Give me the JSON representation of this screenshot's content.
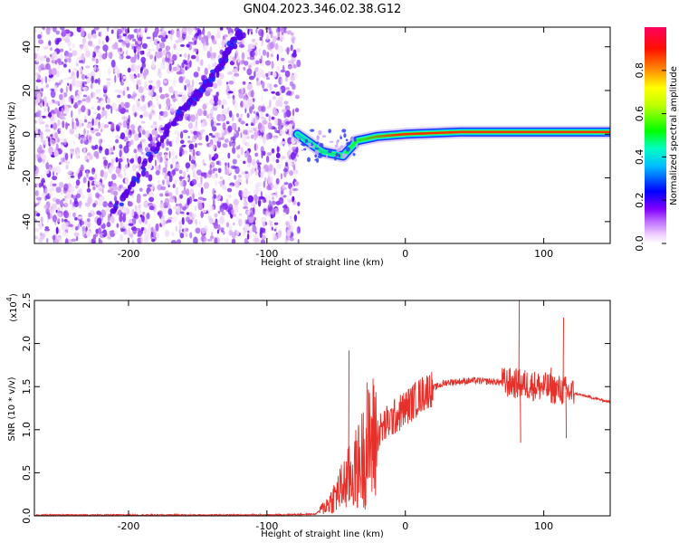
{
  "title": "GN04.2023.346.02.38.G12",
  "chart_data": [
    {
      "type": "heatmap",
      "xlabel": "Height of straight line (km)",
      "ylabel": "Frequency (Hz)",
      "xlim": [
        -268,
        148
      ],
      "ylim": [
        -50,
        49
      ],
      "xticks": [
        -200,
        -100,
        0,
        100
      ],
      "yticks": [
        -40,
        -20,
        0,
        20,
        40
      ],
      "colorbar": {
        "label": "Normalized spectral amplitude",
        "range": [
          0,
          1
        ],
        "ticks": [
          "0.0",
          "0.2",
          "0.4",
          "0.6",
          "0.8"
        ],
        "colors": [
          "#ffffff",
          "#e8b4f8",
          "#9a00ff",
          "#0000ff",
          "#00ffff",
          "#00ff00",
          "#ffff00",
          "#ff8000",
          "#ff0000",
          "#ff0066"
        ]
      },
      "noise_region": {
        "x_start": -268,
        "x_end": -77
      },
      "diagonal_streak": [
        {
          "x": -210,
          "y": -35
        },
        {
          "x": -165,
          "y": 8
        },
        {
          "x": -140,
          "y": 25
        },
        {
          "x": -118,
          "y": 48
        }
      ],
      "signal_ridge": [
        {
          "x": -78,
          "y": 0,
          "amp": 0.35
        },
        {
          "x": -60,
          "y": -8,
          "amp": 0.4
        },
        {
          "x": -45,
          "y": -10,
          "amp": 0.45
        },
        {
          "x": -35,
          "y": -3,
          "amp": 0.6
        },
        {
          "x": -20,
          "y": -1,
          "amp": 0.75
        },
        {
          "x": 0,
          "y": 0,
          "amp": 0.85
        },
        {
          "x": 40,
          "y": 1,
          "amp": 0.9
        },
        {
          "x": 80,
          "y": 1,
          "amp": 0.9
        },
        {
          "x": 100,
          "y": 1,
          "amp": 0.85
        },
        {
          "x": 148,
          "y": 1,
          "amp": 0.7
        }
      ]
    },
    {
      "type": "line",
      "xlabel": "Height of straight line (km)",
      "ylabel": "SNR (10 * v/v)",
      "y_multiplier": "(x10⁴)",
      "y_multiplier_base": "(x10",
      "y_multiplier_exp": "4",
      "y_multiplier_close": ")",
      "xlim": [
        -268,
        148
      ],
      "ylim": [
        0,
        2.5
      ],
      "xticks": [
        -200,
        -100,
        0,
        100
      ],
      "yticks": [
        "0.0",
        "0.5",
        "1.0",
        "1.5",
        "2.0",
        "2.5"
      ],
      "line_color": "#e8302a",
      "envelope": [
        {
          "x": -268,
          "y": 0.01
        },
        {
          "x": -100,
          "y": 0.01
        },
        {
          "x": -65,
          "y": 0.02
        },
        {
          "x": -55,
          "y": 0.15
        },
        {
          "x": -45,
          "y": 0.35
        },
        {
          "x": -35,
          "y": 0.55
        },
        {
          "x": -25,
          "y": 0.85
        },
        {
          "x": -15,
          "y": 1.05
        },
        {
          "x": 0,
          "y": 1.25
        },
        {
          "x": 15,
          "y": 1.45
        },
        {
          "x": 30,
          "y": 1.55
        },
        {
          "x": 50,
          "y": 1.57
        },
        {
          "x": 70,
          "y": 1.55
        },
        {
          "x": 90,
          "y": 1.52
        },
        {
          "x": 115,
          "y": 1.45
        },
        {
          "x": 148,
          "y": 1.32
        }
      ],
      "spikes": [
        {
          "x": -41,
          "y": 1.92
        },
        {
          "x": -28,
          "y": 1.55
        },
        {
          "x": 82,
          "y": 2.5
        },
        {
          "x": 83,
          "y": 0.85
        },
        {
          "x": 105,
          "y": 1.72
        },
        {
          "x": 114,
          "y": 2.3
        },
        {
          "x": 116,
          "y": 0.9
        }
      ]
    }
  ]
}
